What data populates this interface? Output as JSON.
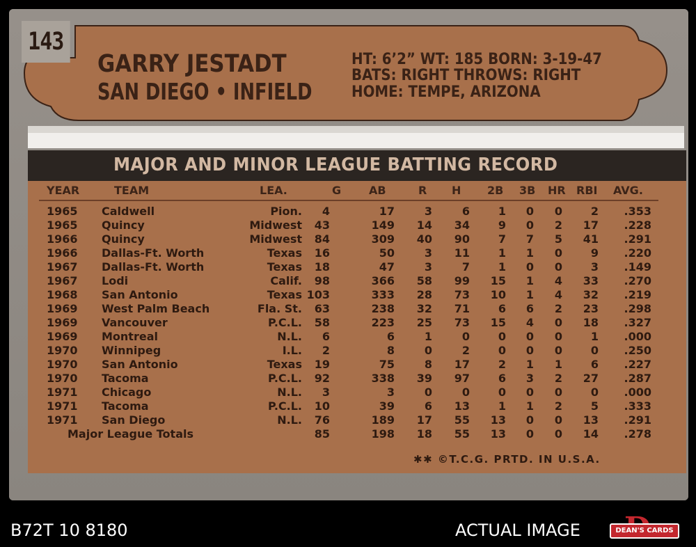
{
  "card": {
    "number": "143",
    "player_name": "GARRY JESTADT",
    "team_position": "SAN DIEGO • INFIELD",
    "bio_line1": "HT: 6’2”   WT: 185  BORN: 3-19-47",
    "bio_line2": "BATS: RIGHT        THROWS: RIGHT",
    "bio_line3": "HOME: TEMPE, ARIZONA",
    "table_title": "MAJOR AND MINOR LEAGUE BATTING RECORD",
    "columns": [
      "YEAR",
      "TEAM",
      "LEA.",
      "G",
      "AB",
      "R",
      "H",
      "2B",
      "3B",
      "HR",
      "RBI",
      "AVG."
    ],
    "rows": [
      {
        "year": "1965",
        "team": "Caldwell",
        "lea": "Pion.",
        "g": "4",
        "ab": "17",
        "r": "3",
        "h": "6",
        "b2": "1",
        "b3": "0",
        "hr": "0",
        "rbi": "2",
        "avg": ".353"
      },
      {
        "year": "1965",
        "team": "Quincy",
        "lea": "Midwest",
        "g": "43",
        "ab": "149",
        "r": "14",
        "h": "34",
        "b2": "9",
        "b3": "0",
        "hr": "2",
        "rbi": "17",
        "avg": ".228"
      },
      {
        "year": "1966",
        "team": "Quincy",
        "lea": "Midwest",
        "g": "84",
        "ab": "309",
        "r": "40",
        "h": "90",
        "b2": "7",
        "b3": "7",
        "hr": "5",
        "rbi": "41",
        "avg": ".291"
      },
      {
        "year": "1966",
        "team": "Dallas-Ft. Worth",
        "lea": "Texas",
        "g": "16",
        "ab": "50",
        "r": "3",
        "h": "11",
        "b2": "1",
        "b3": "1",
        "hr": "0",
        "rbi": "9",
        "avg": ".220"
      },
      {
        "year": "1967",
        "team": "Dallas-Ft. Worth",
        "lea": "Texas",
        "g": "18",
        "ab": "47",
        "r": "3",
        "h": "7",
        "b2": "1",
        "b3": "0",
        "hr": "0",
        "rbi": "3",
        "avg": ".149"
      },
      {
        "year": "1967",
        "team": "Lodi",
        "lea": "Calif.",
        "g": "98",
        "ab": "366",
        "r": "58",
        "h": "99",
        "b2": "15",
        "b3": "1",
        "hr": "4",
        "rbi": "33",
        "avg": ".270"
      },
      {
        "year": "1968",
        "team": "San Antonio",
        "lea": "Texas",
        "g": "103",
        "ab": "333",
        "r": "28",
        "h": "73",
        "b2": "10",
        "b3": "1",
        "hr": "4",
        "rbi": "32",
        "avg": ".219"
      },
      {
        "year": "1969",
        "team": "West Palm Beach",
        "lea": "Fla. St.",
        "g": "63",
        "ab": "238",
        "r": "32",
        "h": "71",
        "b2": "6",
        "b3": "6",
        "hr": "2",
        "rbi": "23",
        "avg": ".298"
      },
      {
        "year": "1969",
        "team": "Vancouver",
        "lea": "P.C.L.",
        "g": "58",
        "ab": "223",
        "r": "25",
        "h": "73",
        "b2": "15",
        "b3": "4",
        "hr": "0",
        "rbi": "18",
        "avg": ".327"
      },
      {
        "year": "1969",
        "team": "Montreal",
        "lea": "N.L.",
        "g": "6",
        "ab": "6",
        "r": "1",
        "h": "0",
        "b2": "0",
        "b3": "0",
        "hr": "0",
        "rbi": "1",
        "avg": ".000"
      },
      {
        "year": "1970",
        "team": "Winnipeg",
        "lea": "I.L.",
        "g": "2",
        "ab": "8",
        "r": "0",
        "h": "2",
        "b2": "0",
        "b3": "0",
        "hr": "0",
        "rbi": "0",
        "avg": ".250"
      },
      {
        "year": "1970",
        "team": "San Antonio",
        "lea": "Texas",
        "g": "19",
        "ab": "75",
        "r": "8",
        "h": "17",
        "b2": "2",
        "b3": "1",
        "hr": "1",
        "rbi": "6",
        "avg": ".227"
      },
      {
        "year": "1970",
        "team": "Tacoma",
        "lea": "P.C.L.",
        "g": "92",
        "ab": "338",
        "r": "39",
        "h": "97",
        "b2": "6",
        "b3": "3",
        "hr": "2",
        "rbi": "27",
        "avg": ".287"
      },
      {
        "year": "1971",
        "team": "Chicago",
        "lea": "N.L.",
        "g": "3",
        "ab": "3",
        "r": "0",
        "h": "0",
        "b2": "0",
        "b3": "0",
        "hr": "0",
        "rbi": "0",
        "avg": ".000"
      },
      {
        "year": "1971",
        "team": "Tacoma",
        "lea": "P.C.L.",
        "g": "10",
        "ab": "39",
        "r": "6",
        "h": "13",
        "b2": "1",
        "b3": "1",
        "hr": "2",
        "rbi": "5",
        "avg": ".333"
      },
      {
        "year": "1971",
        "team": "San Diego",
        "lea": "N.L.",
        "g": "76",
        "ab": "189",
        "r": "17",
        "h": "55",
        "b2": "13",
        "b3": "0",
        "hr": "0",
        "rbi": "13",
        "avg": ".291"
      }
    ],
    "totals": {
      "label": "Major League Totals",
      "g": "85",
      "ab": "198",
      "r": "18",
      "h": "55",
      "b2": "13",
      "b3": "0",
      "hr": "0",
      "rbi": "14",
      "avg": ".278"
    },
    "copyright": "✱✱ ©T.C.G. PRTD. IN U.S.A."
  },
  "footer": {
    "cert": "B72T 10 8180",
    "label": "ACTUAL IMAGE",
    "logo_text": "DEAN'S CARDS",
    "logo_letter": "D"
  },
  "colors": {
    "card_gray": "#8f8a84",
    "header_brown": "#a8704b",
    "title_bar": "#2b2521",
    "text_dark": "#2e1a10",
    "logo_red": "#c3272e"
  }
}
